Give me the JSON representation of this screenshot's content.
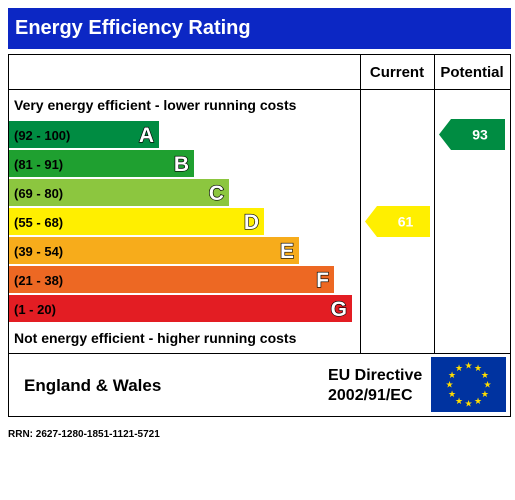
{
  "title": "Energy Efficiency Rating",
  "columns": {
    "current": "Current",
    "potential": "Potential"
  },
  "top_note": "Very energy efficient - lower running costs",
  "bottom_note": "Not energy efficient - higher running costs",
  "footer": {
    "region": "England & Wales",
    "directive_line1": "EU Directive",
    "directive_line2": "2002/91/EC"
  },
  "rrn": "RRN: 2627-1280-1851-1121-5721",
  "chart_data": {
    "type": "bar",
    "bands": [
      {
        "range": "(92 - 100)",
        "letter": "A",
        "color": "#008c42"
      },
      {
        "range": "(81 - 91)",
        "letter": "B",
        "color": "#1fa030"
      },
      {
        "range": "(69 - 80)",
        "letter": "C",
        "color": "#8cc63f"
      },
      {
        "range": "(55 - 68)",
        "letter": "D",
        "color": "#ffef00"
      },
      {
        "range": "(39 - 54)",
        "letter": "E",
        "color": "#f7ac1b"
      },
      {
        "range": "(21 - 38)",
        "letter": "F",
        "color": "#ed6823"
      },
      {
        "range": "(1 - 20)",
        "letter": "G",
        "color": "#e31d23"
      }
    ],
    "current": {
      "value": 61,
      "band": "D",
      "color": "#ffef00"
    },
    "potential": {
      "value": 93,
      "band": "A",
      "color": "#008c42"
    }
  }
}
